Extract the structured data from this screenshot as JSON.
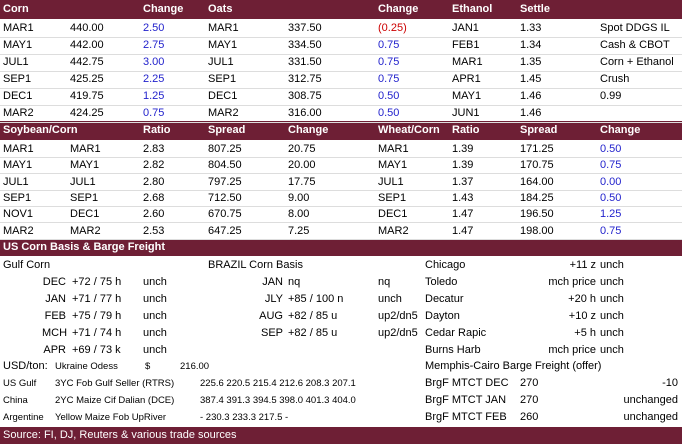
{
  "top_headers": [
    "Corn",
    "Change",
    "Oats",
    "Change",
    "Ethanol",
    "Settle"
  ],
  "top_rows": [
    {
      "corn_m": "MAR1",
      "corn_p": "440.00",
      "corn_c": "2.50",
      "oats_m": "MAR1",
      "oats_p": "337.50",
      "oats_c": "(0.25)",
      "eth_m": "JAN1",
      "eth_s": "1.33",
      "note": "Spot DDGS IL"
    },
    {
      "corn_m": "MAY1",
      "corn_p": "442.00",
      "corn_c": "2.75",
      "oats_m": "MAY1",
      "oats_p": "334.50",
      "oats_c": "0.75",
      "eth_m": "FEB1",
      "eth_s": "1.34",
      "note": "Cash & CBOT"
    },
    {
      "corn_m": "JUL1",
      "corn_p": "442.75",
      "corn_c": "3.00",
      "oats_m": "JUL1",
      "oats_p": "331.50",
      "oats_c": "0.75",
      "eth_m": "MAR1",
      "eth_s": "1.35",
      "note": "Corn + Ethanol"
    },
    {
      "corn_m": "SEP1",
      "corn_p": "425.25",
      "corn_c": "2.25",
      "oats_m": "SEP1",
      "oats_p": "312.75",
      "oats_c": "0.75",
      "eth_m": "APR1",
      "eth_s": "1.45",
      "note": "Crush"
    },
    {
      "corn_m": "DEC1",
      "corn_p": "419.75",
      "corn_c": "1.25",
      "oats_m": "DEC1",
      "oats_p": "308.75",
      "oats_c": "0.50",
      "eth_m": "MAY1",
      "eth_s": "1.46",
      "note": "0.99"
    },
    {
      "corn_m": "MAR2",
      "corn_p": "424.25",
      "corn_c": "0.75",
      "oats_m": "MAR2",
      "oats_p": "316.00",
      "oats_c": "0.50",
      "eth_m": "JUN1",
      "eth_s": "1.46",
      "note": ""
    }
  ],
  "mid_headers": [
    "Soybean/Corn",
    "Ratio",
    "Spread",
    "Change",
    "Wheat/Corn",
    "Ratio",
    "Spread",
    "Change"
  ],
  "mid_rows": [
    {
      "s1": "MAR1",
      "s2": "MAR1",
      "ratio": "2.83",
      "spread": "807.25",
      "chg": "20.75",
      "w1": "MAR1",
      "wratio": "1.39",
      "wspread": "171.25",
      "wchg": "0.50"
    },
    {
      "s1": "MAY1",
      "s2": "MAY1",
      "ratio": "2.82",
      "spread": "804.50",
      "chg": "20.00",
      "w1": "MAY1",
      "wratio": "1.39",
      "wspread": "170.75",
      "wchg": "0.75"
    },
    {
      "s1": "JUL1",
      "s2": "JUL1",
      "ratio": "2.80",
      "spread": "797.25",
      "chg": "17.75",
      "w1": "JUL1",
      "wratio": "1.37",
      "wspread": "164.00",
      "wchg": "0.00"
    },
    {
      "s1": "SEP1",
      "s2": "SEP1",
      "ratio": "2.68",
      "spread": "712.50",
      "chg": "9.00",
      "w1": "SEP1",
      "wratio": "1.43",
      "wspread": "184.25",
      "wchg": "0.50"
    },
    {
      "s1": "NOV1",
      "s2": "DEC1",
      "ratio": "2.60",
      "spread": "670.75",
      "chg": "8.00",
      "w1": "DEC1",
      "wratio": "1.47",
      "wspread": "196.50",
      "wchg": "1.25"
    },
    {
      "s1": "MAR2",
      "s2": "MAR2",
      "ratio": "2.53",
      "spread": "647.25",
      "chg": "7.25",
      "w1": "MAR2",
      "wratio": "1.47",
      "wspread": "198.00",
      "wchg": "0.75"
    }
  ],
  "basis_header": "US Corn Basis & Barge Freight",
  "gulf_title": "Gulf Corn",
  "brazil_title": "BRAZIL Corn Basis",
  "gulf_rows": [
    {
      "m": "DEC",
      "v": "+72 / 75 h",
      "c": "unch"
    },
    {
      "m": "JAN",
      "v": "+71 / 77 h",
      "c": "unch"
    },
    {
      "m": "FEB",
      "v": "+75 / 79 h",
      "c": "unch"
    },
    {
      "m": "MCH",
      "v": "+71 / 74 h",
      "c": "unch"
    },
    {
      "m": "APR",
      "v": "+69 / 73 k",
      "c": "unch"
    }
  ],
  "brazil_rows": [
    {
      "m": "JAN",
      "v": "nq",
      "c": "nq"
    },
    {
      "m": "JLY",
      "v": "+85 / 100 n",
      "c": "unch"
    },
    {
      "m": "AUG",
      "v": "+82 / 85 u",
      "c": "up2/dn5"
    },
    {
      "m": "SEP",
      "v": "+82 / 85 u",
      "c": "up2/dn5"
    }
  ],
  "right_rows": [
    {
      "l": "Chicago",
      "v": "+11 z",
      "c": "unch"
    },
    {
      "l": "Toledo",
      "v": "mch price",
      "c": "unch"
    },
    {
      "l": "Decatur",
      "v": "+20 h",
      "c": "unch"
    },
    {
      "l": "Dayton",
      "v": "+10 z",
      "c": "unch"
    },
    {
      "l": "Cedar Rapic",
      "v": "+5 h",
      "c": "unch"
    },
    {
      "l": "Burns Harb",
      "v": "mch price",
      "c": "unch"
    }
  ],
  "usd_label": "USD/ton:",
  "ukraine_label": "Ukraine Odess",
  "ukraine_sym": "$",
  "ukraine_val": "216.00",
  "barge_title": "Memphis-Cairo Barge Freight (offer)",
  "fob_rows": [
    {
      "a": "US Gulf",
      "b": "3YC Fob Gulf Seller (RTRS)",
      "v": "225.6  220.5  215.4  212.6  208.3  207.1"
    },
    {
      "a": "China",
      "b": "2YC Maize Cif Dalian (DCE)",
      "v": "387.4  391.3  394.5  398.0  401.3  404.0"
    },
    {
      "a": "Argentine",
      "b": "Yellow Maize Fob UpRiver",
      "v": "-    230.3  233.3  217.5  -"
    }
  ],
  "barge_rows": [
    {
      "l": "BrgF MTCT DEC",
      "v": "270",
      "c": "-10"
    },
    {
      "l": "BrgF MTCT JAN",
      "v": "270",
      "c": "unchanged"
    },
    {
      "l": "BrgF MTCT FEB",
      "v": "260",
      "c": "unchanged"
    }
  ],
  "source": "Source: FI, DJ, Reuters & various trade sources"
}
